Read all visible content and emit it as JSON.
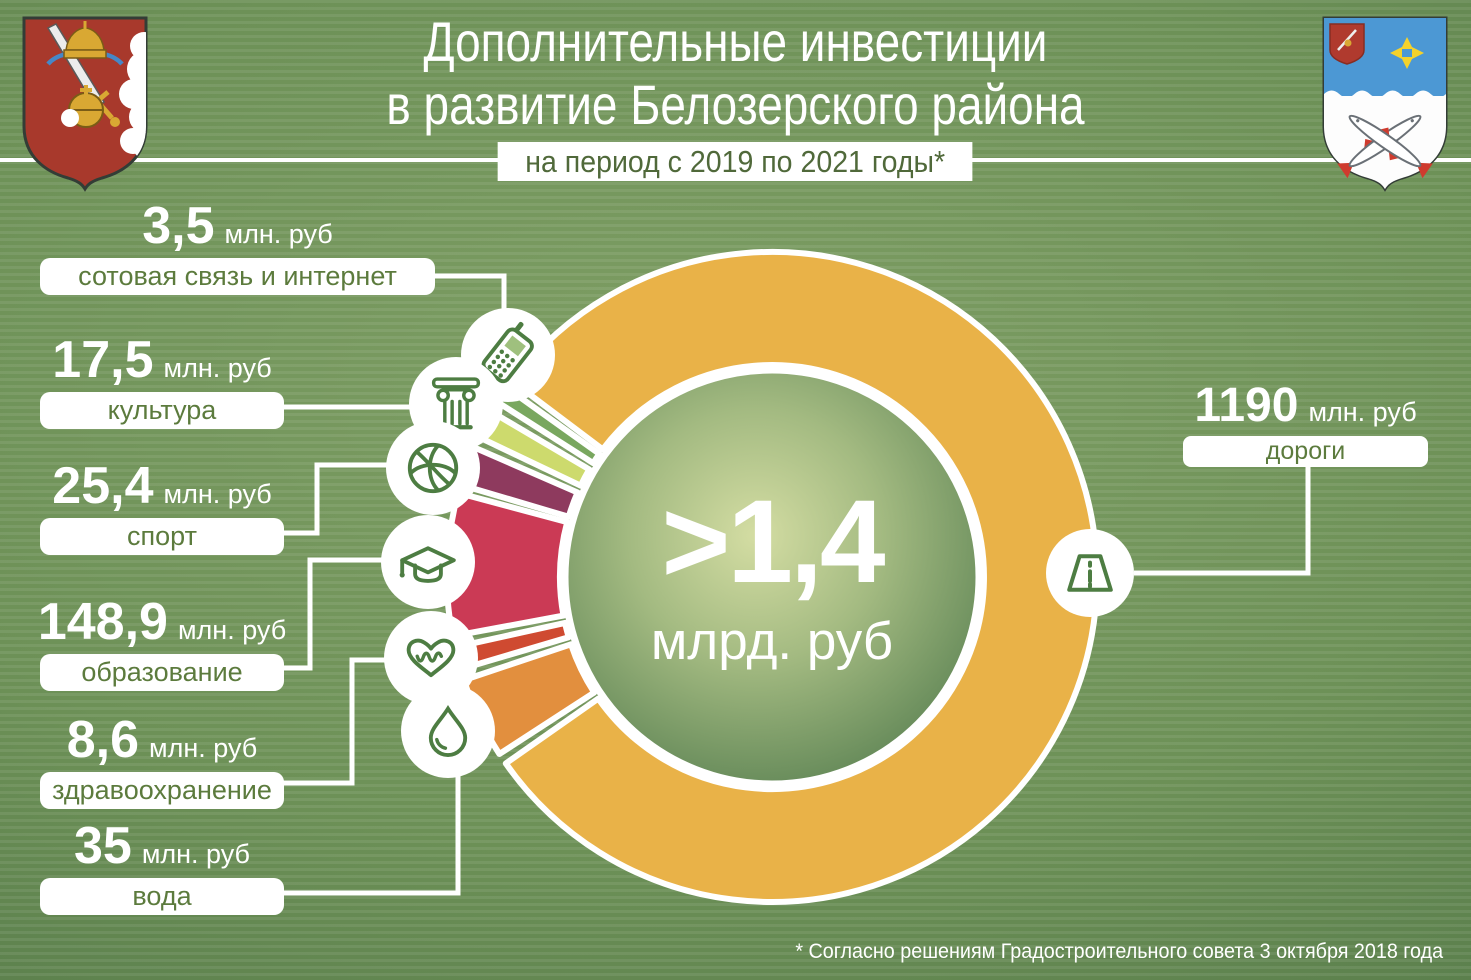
{
  "header": {
    "title_line1": "Дополнительные инвестиции",
    "title_line2": "в развитие Белозерского района",
    "subtitle": "на период с 2019 по 2021 годы*"
  },
  "labels": [
    {
      "number": "3,5",
      "unit": "млн. руб",
      "category": "сотовая связь и интернет"
    },
    {
      "number": "17,5",
      "unit": "млн. руб",
      "category": "культура"
    },
    {
      "number": "25,4",
      "unit": "млн. руб",
      "category": "спорт"
    },
    {
      "number": "148,9",
      "unit": "млн. руб",
      "category": "образование"
    },
    {
      "number": "8,6",
      "unit": "млн. руб",
      "category": "здравоохранение"
    },
    {
      "number": "35",
      "unit": "млн. руб",
      "category": "вода"
    },
    {
      "number": "1190",
      "unit": "млн. руб",
      "category": "дороги"
    }
  ],
  "center": {
    "value": ">1,4",
    "unit": "млрд. руб"
  },
  "footnote": "* Согласно решениям Градостроительного совета 3 октября 2018 года",
  "colors": {
    "background_green": "#6d9157",
    "box_text_green": "#5c7b3d",
    "subtitle_text_green": "#50693a",
    "icon_stroke_green": "#4d7d42",
    "white": "#ffffff"
  },
  "chart_data": {
    "type": "pie",
    "subtype": "donut",
    "title": "Дополнительные инвестиции в развитие Белозерского района",
    "subtitle": "на период с 2019 по 2021 годы",
    "unit": "млн. руб",
    "total": 1428.9,
    "center_label": ">1,4 млрд. руб",
    "legend_position": "callout-labels",
    "note": "segment angles are exaggerated for small slices as drawn in the source infographic; angles are degrees clockwise from 12 o'clock",
    "segments": [
      {
        "id": "roads",
        "label": "дороги",
        "value": 1190,
        "color": "#e9b248",
        "start_deg": 307,
        "end_deg": 595
      },
      {
        "id": "water",
        "label": "вода",
        "value": 35,
        "color": "#e28f3e",
        "start_deg": 237,
        "end_deg": 251.5
      },
      {
        "id": "health",
        "label": "здравоохранение",
        "value": 8.6,
        "color": "#cf4a31",
        "start_deg": 253.5,
        "end_deg": 257.5
      },
      {
        "id": "education",
        "label": "образование",
        "value": 148.9,
        "color": "#cb3a55",
        "start_deg": 259.5,
        "end_deg": 285
      },
      {
        "id": "sport",
        "label": "спорт",
        "value": 25.4,
        "color": "#8e3a5e",
        "start_deg": 286.5,
        "end_deg": 293.5
      },
      {
        "id": "culture",
        "label": "культура",
        "value": 17.5,
        "color": "#cdda6d",
        "start_deg": 295.5,
        "end_deg": 300.5
      },
      {
        "id": "cell",
        "label": "сотовая связь и интернет",
        "value": 3.5,
        "color": "#79a75f",
        "start_deg": 302.5,
        "end_deg": 305.5
      }
    ]
  }
}
